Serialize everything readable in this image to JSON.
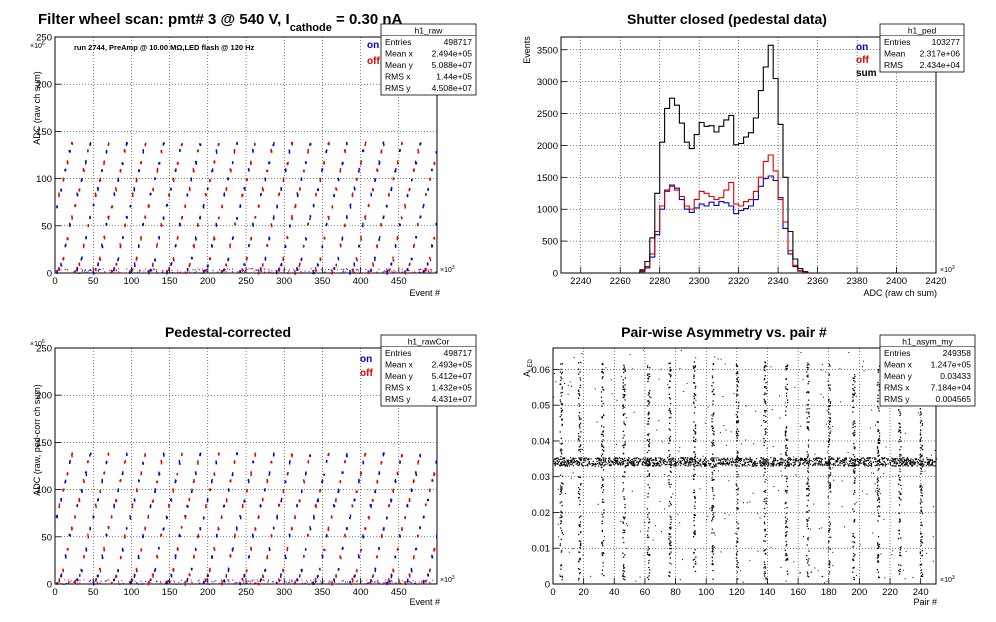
{
  "colors": {
    "on": "#0000cc",
    "off": "#dd0000",
    "sum": "#000000",
    "axis": "#000000",
    "grid": "#000000"
  },
  "panels": [
    {
      "id": "raw",
      "title_main": "Filter wheel scan: pmt#   3 @   540 V, I",
      "title_sub": "cathode",
      "title_tail": " = 0.30 nA",
      "ylabel": "ADC (raw ch sum)",
      "xlabel": "Event #",
      "y_exponent": "×10",
      "y_exp_power": "6",
      "x_exponent": "×10",
      "x_exp_power": "3",
      "annotation": "run 2744, PreAmp @ 10.00 MΩ,LED flash @  120 Hz",
      "legend": [
        {
          "label": "on",
          "color": "#0000cc"
        },
        {
          "label": "off",
          "color": "#dd0000"
        }
      ],
      "stats": {
        "name": "h1_raw",
        "rows": [
          [
            "Entries",
            "498717"
          ],
          [
            "Mean x",
            "2.494e+05"
          ],
          [
            "Mean y",
            "5.088e+07"
          ],
          [
            "RMS x",
            "1.44e+05"
          ],
          [
            "RMS y",
            "4.508e+07"
          ]
        ]
      }
    },
    {
      "id": "ped",
      "title_main": "Shutter closed (pedestal data)",
      "ylabel": "Events",
      "xlabel": "ADC (raw ch sum)",
      "x_exponent": "×10",
      "x_exp_power": "3",
      "legend": [
        {
          "label": "on",
          "color": "#0000cc"
        },
        {
          "label": "off",
          "color": "#dd0000"
        },
        {
          "label": "sum",
          "color": "#000000"
        }
      ],
      "stats": {
        "name": "h1_ped",
        "rows": [
          [
            "Entries",
            "103277"
          ],
          [
            "Mean",
            "2.317e+06"
          ],
          [
            "RMS",
            "2.434e+04"
          ]
        ]
      }
    },
    {
      "id": "rawCor",
      "title_main": "Pedestal-corrected",
      "ylabel": "ADC (raw, ped-corr ch sum)",
      "xlabel": "Event #",
      "y_exponent": "×10",
      "y_exp_power": "6",
      "x_exponent": "×10",
      "x_exp_power": "3",
      "legend": [
        {
          "label": "on",
          "color": "#0000cc"
        },
        {
          "label": "off",
          "color": "#dd0000"
        }
      ],
      "stats": {
        "name": "h1_rawCor",
        "rows": [
          [
            "Entries",
            "498717"
          ],
          [
            "Mean x",
            "2.493e+05"
          ],
          [
            "Mean y",
            "5.412e+07"
          ],
          [
            "RMS x",
            "1.432e+05"
          ],
          [
            "RMS y",
            "4.431e+07"
          ]
        ]
      }
    },
    {
      "id": "asym",
      "title_main": "Pair-wise Asymmetry vs. pair #",
      "ylabel_main": "A",
      "ylabel_sub": "LED",
      "xlabel": "Pair #",
      "x_exponent": "×10",
      "x_exp_power": "3",
      "stats": {
        "name": "h1_asym_my",
        "rows": [
          [
            "Entries",
            "249358"
          ],
          [
            "Mean x",
            "1.247e+05"
          ],
          [
            "Mean y",
            "0.03433"
          ],
          [
            "RMS x",
            "7.184e+04"
          ],
          [
            "RMS y",
            "0.004565"
          ]
        ]
      }
    }
  ],
  "chart_data": [
    {
      "type": "scatter",
      "panel": "raw",
      "xlim": [
        0,
        500
      ],
      "ylim": [
        0,
        250
      ],
      "xticks": [
        0,
        50,
        100,
        150,
        200,
        250,
        300,
        350,
        400,
        450
      ],
      "yticks": [
        0,
        50,
        100,
        150,
        200,
        250
      ],
      "grid": true,
      "levels": [
        2,
        5,
        10,
        16,
        30,
        38,
        52,
        60,
        72,
        84,
        90,
        100,
        110,
        118,
        130,
        138
      ],
      "cycle_period": 24,
      "series": [
        {
          "name": "on",
          "color": "#0000cc"
        },
        {
          "name": "off",
          "color": "#dd0000"
        }
      ]
    },
    {
      "type": "line",
      "panel": "ped",
      "xlim": [
        2230,
        2420
      ],
      "ylim": [
        0,
        3700
      ],
      "xticks": [
        2240,
        2260,
        2280,
        2300,
        2320,
        2340,
        2360,
        2380,
        2400,
        2420
      ],
      "yticks": [
        0,
        500,
        1000,
        1500,
        2000,
        2500,
        3000,
        3500
      ],
      "grid": true,
      "bin_start": 2230,
      "bin_width": 2.5,
      "series": [
        {
          "name": "on",
          "color": "#0000cc",
          "values": [
            0,
            0,
            0,
            0,
            0,
            0,
            0,
            0,
            0,
            0,
            0,
            0,
            0,
            0,
            0,
            0,
            20,
            80,
            250,
            600,
            1000,
            1300,
            1380,
            1330,
            1150,
            1000,
            950,
            1020,
            1080,
            1050,
            1110,
            1060,
            1120,
            1100,
            1050,
            930,
            980,
            1010,
            1050,
            1150,
            1360,
            1480,
            1520,
            1450,
            1180,
            700,
            300,
            100,
            30,
            10,
            0,
            0,
            0,
            0,
            0,
            0,
            0,
            0,
            0,
            0,
            0,
            0,
            0,
            0,
            0,
            0,
            0,
            0,
            0,
            0,
            0,
            0,
            0,
            0,
            0,
            0
          ]
        },
        {
          "name": "off",
          "color": "#dd0000",
          "values": [
            0,
            0,
            0,
            0,
            0,
            0,
            0,
            0,
            0,
            0,
            0,
            0,
            0,
            0,
            0,
            0,
            30,
            100,
            300,
            650,
            1050,
            1280,
            1360,
            1300,
            1200,
            1050,
            1000,
            1150,
            1280,
            1250,
            1200,
            1150,
            1180,
            1300,
            1420,
            1080,
            1050,
            1120,
            1150,
            1280,
            1500,
            1750,
            1850,
            1600,
            1150,
            800,
            350,
            120,
            40,
            10,
            0,
            0,
            0,
            0,
            0,
            0,
            0,
            0,
            0,
            0,
            0,
            0,
            0,
            0,
            0,
            0,
            0,
            0,
            0,
            0,
            0,
            0,
            0,
            0,
            0,
            0
          ]
        },
        {
          "name": "sum",
          "color": "#000000",
          "values": [
            0,
            0,
            0,
            0,
            0,
            0,
            0,
            0,
            0,
            0,
            0,
            0,
            0,
            0,
            0,
            0,
            50,
            180,
            550,
            1250,
            2050,
            2580,
            2740,
            2630,
            2350,
            2050,
            1950,
            2170,
            2360,
            2300,
            2310,
            2210,
            2300,
            2400,
            2470,
            2010,
            2030,
            2130,
            2200,
            2430,
            2860,
            3230,
            3570,
            3050,
            2330,
            1500,
            650,
            220,
            70,
            20,
            0,
            0,
            0,
            0,
            0,
            0,
            0,
            0,
            0,
            0,
            0,
            0,
            0,
            0,
            0,
            0,
            0,
            0,
            0,
            0,
            0,
            0,
            0,
            0,
            0,
            0
          ]
        }
      ]
    },
    {
      "type": "scatter",
      "panel": "rawCor",
      "xlim": [
        0,
        500
      ],
      "ylim": [
        0,
        250
      ],
      "xticks": [
        0,
        50,
        100,
        150,
        200,
        250,
        300,
        350,
        400,
        450
      ],
      "yticks": [
        0,
        50,
        100,
        150,
        200,
        250
      ],
      "grid": true,
      "levels": [
        2,
        5,
        10,
        16,
        30,
        38,
        52,
        60,
        72,
        84,
        90,
        100,
        110,
        118,
        130,
        138
      ],
      "cycle_period": 24,
      "series": [
        {
          "name": "on",
          "color": "#0000cc"
        },
        {
          "name": "off",
          "color": "#dd0000"
        }
      ]
    },
    {
      "type": "scatter",
      "panel": "asym",
      "xlim": [
        0,
        250
      ],
      "ylim": [
        0,
        0.066
      ],
      "xticks": [
        0,
        20,
        40,
        60,
        80,
        100,
        120,
        140,
        160,
        180,
        200,
        220,
        240
      ],
      "yticks": [
        0,
        0.01,
        0.02,
        0.03,
        0.04,
        0.05,
        0.06
      ],
      "grid": true,
      "band_center": 0.0343,
      "band_halfwidth": 0.0012,
      "burst_x": [
        5,
        17,
        32,
        46,
        62,
        76,
        92,
        104,
        120,
        138,
        152,
        166,
        180,
        196,
        212,
        226,
        240
      ],
      "series": [
        {
          "name": "h1_asym_my",
          "color": "#000000"
        }
      ]
    }
  ]
}
